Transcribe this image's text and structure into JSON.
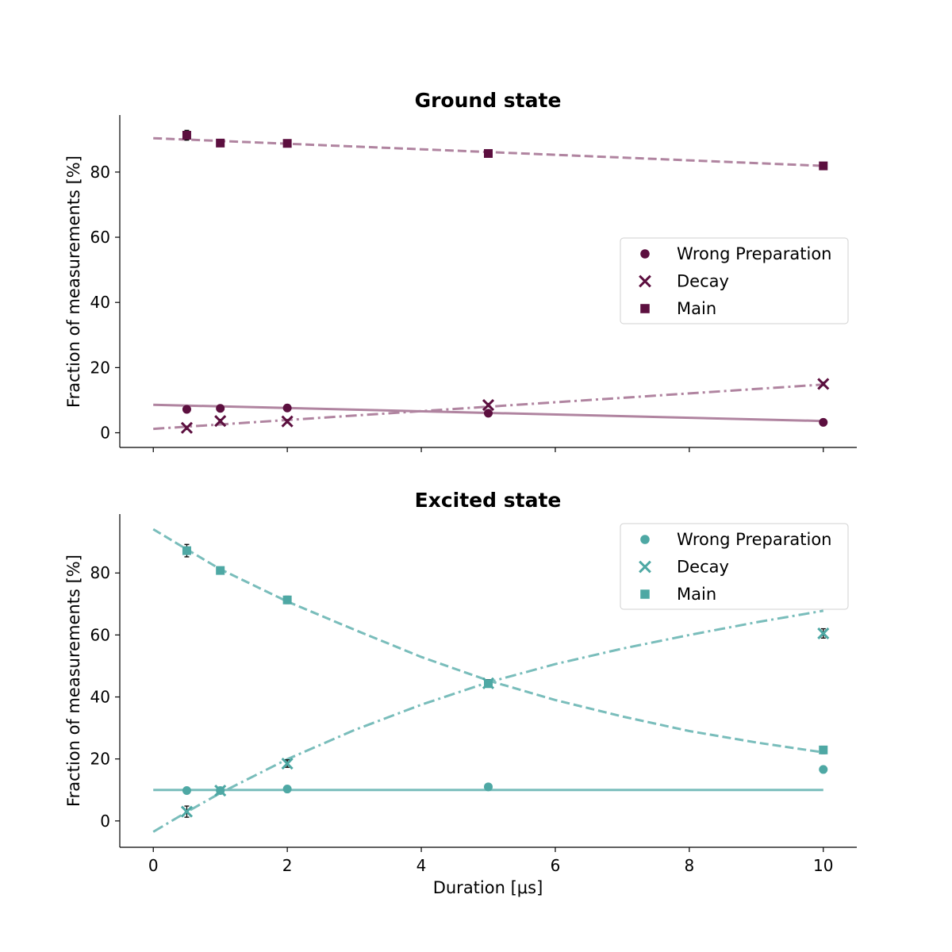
{
  "chart_data": [
    {
      "type": "scatter",
      "title": "Ground state",
      "xlabel": "",
      "ylabel": "Fraction of measurements [%]",
      "xlim": [
        -0.5,
        10.5
      ],
      "ylim": [
        -4.5,
        97.5
      ],
      "x_ticks": [
        0,
        2,
        4,
        6,
        8,
        10
      ],
      "x_tick_labels_shown": false,
      "y_ticks": [
        0,
        20,
        40,
        60,
        80
      ],
      "y_tick_labels": [
        "0",
        "20",
        "40",
        "60",
        "80"
      ],
      "grid": false,
      "legend_position": "center-right",
      "colors": {
        "marker": "#5c0f3f",
        "fit_line": "#b084a0"
      },
      "series": [
        {
          "name": "Wrong Preparation",
          "marker": "circle",
          "fit_style": "solid",
          "x": [
            0.5,
            1,
            2,
            5,
            10
          ],
          "y": [
            7.2,
            7.5,
            7.6,
            6.0,
            3.2
          ],
          "err": [
            0.4,
            0.4,
            0.4,
            0.4,
            0.4
          ],
          "fit": {
            "x": [
              0,
              10
            ],
            "y": [
              8.6,
              3.6
            ]
          }
        },
        {
          "name": "Decay",
          "marker": "x",
          "fit_style": "dashdot",
          "x": [
            0.5,
            1,
            2,
            5,
            10
          ],
          "y": [
            1.5,
            3.6,
            3.5,
            8.5,
            15.0
          ],
          "err": [
            0.5,
            0.5,
            0.5,
            0.5,
            0.5
          ],
          "fit": {
            "x": [
              0,
              10
            ],
            "y": [
              1.2,
              14.8
            ]
          }
        },
        {
          "name": "Main",
          "marker": "square",
          "fit_style": "dashed",
          "x": [
            0.5,
            1,
            2,
            5,
            10
          ],
          "y": [
            91.3,
            88.9,
            88.8,
            85.7,
            81.9
          ],
          "err": [
            1.5,
            0.6,
            0.6,
            0.6,
            0.6
          ],
          "fit": {
            "x": [
              0,
              10
            ],
            "y": [
              90.4,
              81.9
            ]
          }
        }
      ]
    },
    {
      "type": "scatter",
      "title": "Excited state",
      "xlabel": "Duration [μs]",
      "ylabel": "Fraction of measurements [%]",
      "xlim": [
        -0.5,
        10.5
      ],
      "ylim": [
        -8.5,
        99.0
      ],
      "x_ticks": [
        0,
        2,
        4,
        6,
        8,
        10
      ],
      "x_tick_labels": [
        "0",
        "2",
        "4",
        "6",
        "8",
        "10"
      ],
      "y_ticks": [
        0,
        20,
        40,
        60,
        80
      ],
      "y_tick_labels": [
        "0",
        "20",
        "40",
        "60",
        "80"
      ],
      "grid": false,
      "legend_position": "top-right",
      "colors": {
        "marker": "#4ea8a4",
        "fit_line": "#79bdbb"
      },
      "series": [
        {
          "name": "Wrong Preparation",
          "marker": "circle",
          "fit_style": "solid",
          "x": [
            0.5,
            1,
            2,
            5,
            10
          ],
          "y": [
            9.8,
            9.8,
            10.3,
            11.0,
            16.6
          ],
          "err": [
            0.8,
            0.8,
            0.8,
            0.8,
            0.9
          ],
          "fit": {
            "x": [
              0,
              10
            ],
            "y": [
              10.0,
              10.0
            ]
          }
        },
        {
          "name": "Decay",
          "marker": "x",
          "fit_style": "dashdot",
          "x": [
            0.5,
            1,
            2,
            5,
            10
          ],
          "y": [
            3.0,
            9.8,
            18.5,
            44.4,
            60.5
          ],
          "err": [
            1.8,
            1.0,
            1.2,
            1.2,
            1.5
          ],
          "fit": {
            "x": [
              0,
              0.5,
              1,
              2,
              3,
              4,
              5,
              6,
              7,
              8,
              9,
              10
            ],
            "y": [
              -3.5,
              2.9,
              9.0,
              19.9,
              29.3,
              37.5,
              44.7,
              50.6,
              55.6,
              60.0,
              64.1,
              67.8
            ]
          }
        },
        {
          "name": "Main",
          "marker": "square",
          "fit_style": "dashed",
          "x": [
            0.5,
            1,
            2,
            5,
            10
          ],
          "y": [
            87.2,
            80.8,
            71.3,
            44.3,
            22.9
          ],
          "err": [
            2.0,
            1.0,
            1.2,
            1.2,
            1.2
          ],
          "fit": {
            "x": [
              0,
              0.5,
              1,
              2,
              3,
              4,
              5,
              6,
              7,
              8,
              9,
              10
            ],
            "y": [
              94.1,
              87.6,
              81.2,
              70.8,
              61.7,
              52.9,
              45.3,
              39.0,
              33.7,
              29.0,
              25.3,
              22.1
            ]
          }
        }
      ]
    }
  ]
}
